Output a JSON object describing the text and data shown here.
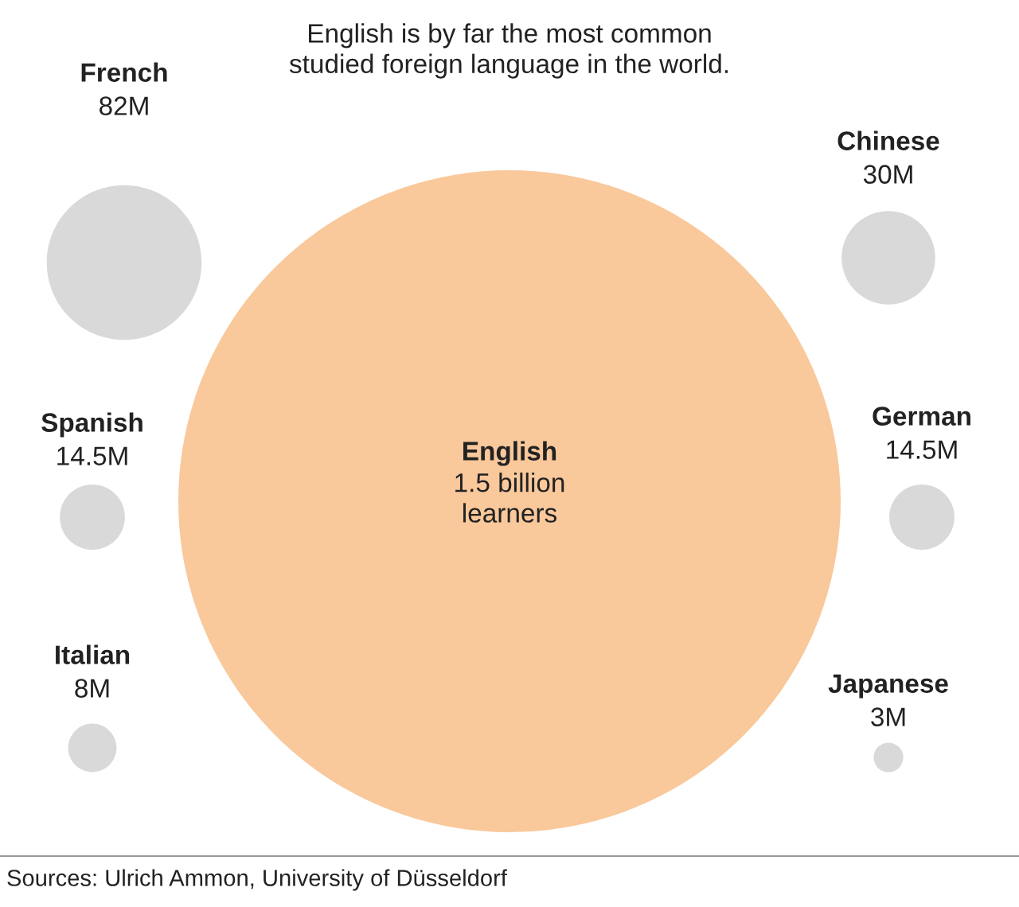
{
  "chart_data": {
    "type": "other",
    "title": "English is by far the most common studied foreign language in the world.",
    "categories": [
      "French",
      "Chinese",
      "Spanish",
      "German",
      "Italian",
      "Japanese",
      "English"
    ],
    "values": [
      82000000,
      30000000,
      14500000,
      14500000,
      8000000,
      3000000,
      1500000000
    ],
    "value_labels": [
      "82M",
      "30M",
      "14.5M",
      "14.5M",
      "8M",
      "3M",
      "1.5 billion\nlearners"
    ],
    "colors": [
      "#d9d9d9",
      "#d9d9d9",
      "#d9d9d9",
      "#d9d9d9",
      "#d9d9d9",
      "#d9d9d9",
      "#f9c89b"
    ],
    "annotations": [
      "Sources: Ulrich Ammon, University of Düsseldorf"
    ]
  }
}
